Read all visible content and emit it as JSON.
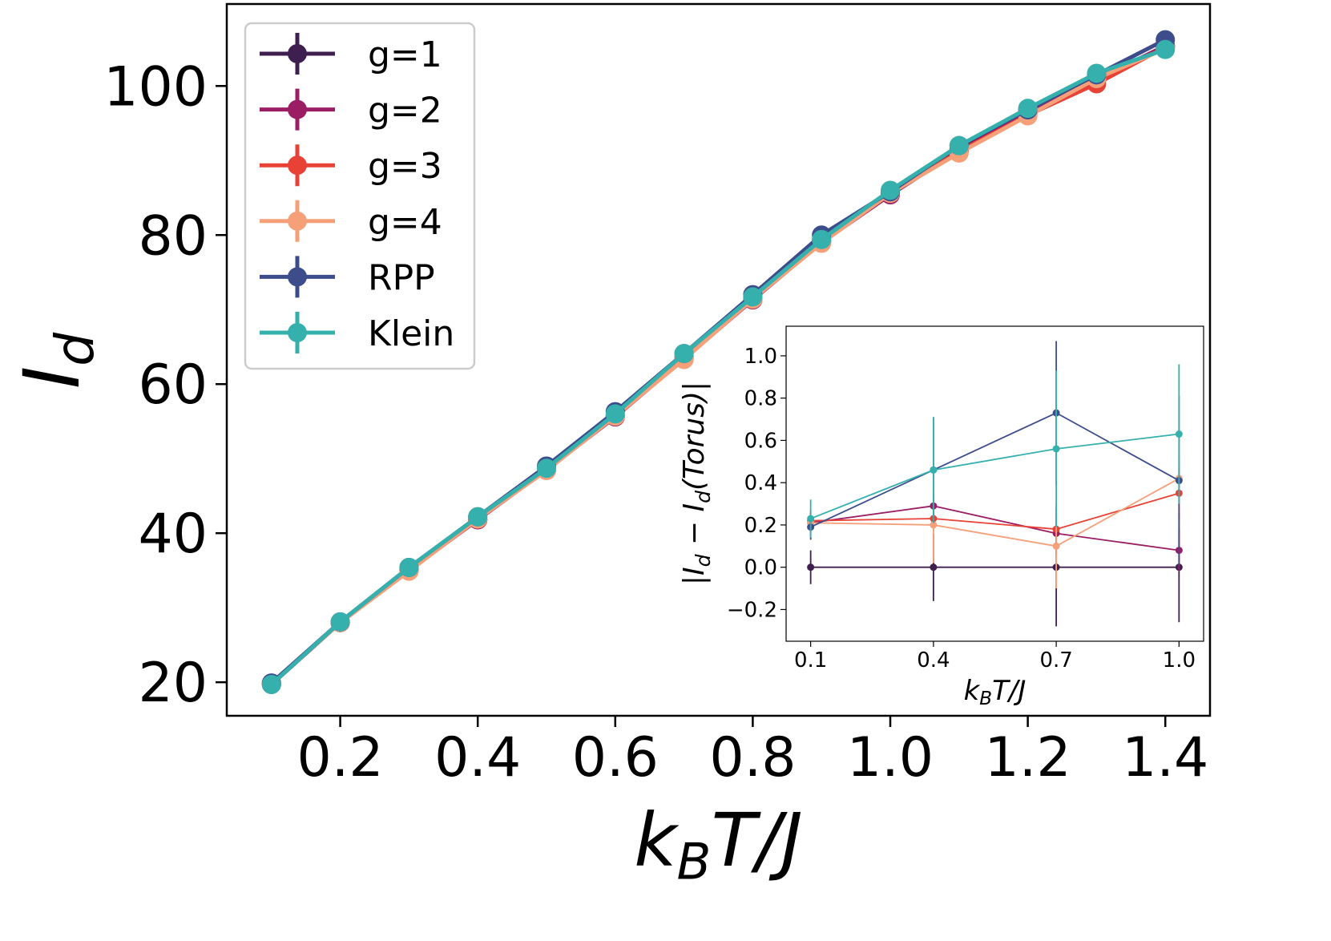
{
  "chart_data": [
    {
      "type": "line",
      "role": "main",
      "title": "",
      "xlabel": {
        "base": "k",
        "sub": "B",
        "rest": "T/J"
      },
      "ylabel": {
        "base": "I",
        "sub": "d"
      },
      "xlim": [
        0.035,
        1.465
      ],
      "ylim": [
        15.5,
        111
      ],
      "xticks": [
        0.2,
        0.4,
        0.6,
        0.8,
        1.0,
        1.2,
        1.4
      ],
      "xtick_labels": [
        "0.2",
        "0.4",
        "0.6",
        "0.8",
        "1.0",
        "1.2",
        "1.4"
      ],
      "yticks": [
        20,
        40,
        60,
        80,
        100
      ],
      "ytick_labels": [
        "20",
        "40",
        "60",
        "80",
        "100"
      ],
      "grid": false,
      "legend": "upper-left",
      "x": [
        0.1,
        0.2,
        0.3,
        0.4,
        0.5,
        0.6,
        0.7,
        0.8,
        0.9,
        1.0,
        1.1,
        1.2,
        1.3,
        1.4
      ],
      "series": [
        {
          "name": "g=1",
          "color": "#3f1f4f",
          "values": [
            19.7,
            28.0,
            35.2,
            41.8,
            48.6,
            55.7,
            63.5,
            71.5,
            79.3,
            85.5,
            91.5,
            96.5,
            101.0,
            105.3
          ]
        },
        {
          "name": "g=2",
          "color": "#9b1d63",
          "values": [
            19.8,
            28.0,
            35.0,
            41.8,
            48.5,
            55.6,
            63.4,
            71.3,
            79.0,
            85.4,
            91.3,
            96.3,
            100.8,
            105.4
          ]
        },
        {
          "name": "g=3",
          "color": "#e84236",
          "values": [
            19.8,
            28.0,
            35.0,
            41.9,
            48.5,
            55.7,
            63.4,
            71.4,
            79.1,
            85.6,
            91.2,
            96.1,
            100.3,
            105.2
          ]
        },
        {
          "name": "g=4",
          "color": "#f6a07a",
          "values": [
            19.8,
            28.0,
            34.9,
            41.9,
            48.4,
            55.7,
            63.3,
            71.4,
            78.9,
            85.6,
            91.0,
            96.0,
            101.0,
            105.0
          ]
        },
        {
          "name": "RPP",
          "color": "#3d4d8c",
          "values": [
            19.9,
            28.1,
            35.4,
            42.2,
            49.0,
            56.3,
            64.1,
            72.0,
            80.0,
            85.8,
            92.0,
            96.8,
            101.5,
            106.2
          ]
        },
        {
          "name": "Klein",
          "color": "#36b0ad",
          "values": [
            19.7,
            28.1,
            35.4,
            42.2,
            48.7,
            56.0,
            64.1,
            71.7,
            79.4,
            86.0,
            92.0,
            97.0,
            101.7,
            104.9
          ]
        }
      ]
    },
    {
      "type": "line",
      "role": "inset",
      "title": "",
      "xlabel": {
        "base": "k",
        "sub": "B",
        "rest": "T/J"
      },
      "ylabel": {
        "text": "|I_d − I_d(Torus)|",
        "open": "|I",
        "sub": "d",
        "mid": " − I",
        "rest": "(Torus)|"
      },
      "xlim": [
        0.04,
        1.06
      ],
      "ylim": [
        -0.35,
        1.14
      ],
      "xticks": [
        0.1,
        0.4,
        0.7,
        1.0
      ],
      "xtick_labels": [
        "0.1",
        "0.4",
        "0.7",
        "1.0"
      ],
      "yticks": [
        -0.2,
        0.0,
        0.2,
        0.4,
        0.6,
        0.8,
        1.0
      ],
      "ytick_labels": [
        "−0.2",
        "0.0",
        "0.2",
        "0.4",
        "0.6",
        "0.8",
        "1.0"
      ],
      "grid": false,
      "x": [
        0.1,
        0.4,
        0.7,
        1.0
      ],
      "series": [
        {
          "name": "g=1",
          "color": "#3f1f4f",
          "values": [
            0.0,
            0.0,
            0.0,
            0.0
          ],
          "err": [
            0.08,
            0.16,
            0.28,
            0.26
          ]
        },
        {
          "name": "g=2",
          "color": "#9b1d63",
          "values": [
            0.21,
            0.29,
            0.16,
            0.08
          ],
          "err": [
            0.04,
            0.06,
            0.1,
            0.1
          ]
        },
        {
          "name": "g=3",
          "color": "#e84236",
          "values": [
            0.22,
            0.23,
            0.18,
            0.35
          ],
          "err": [
            0.05,
            0.06,
            0.1,
            0.12
          ]
        },
        {
          "name": "g=4",
          "color": "#f6a07a",
          "values": [
            0.21,
            0.2,
            0.1,
            0.42
          ],
          "err": [
            0.05,
            0.18,
            0.2,
            0.1
          ]
        },
        {
          "name": "RPP",
          "color": "#3d4d8c",
          "values": [
            0.19,
            0.46,
            0.73,
            0.41
          ],
          "err": [
            0.06,
            0.25,
            0.34,
            0.4
          ]
        },
        {
          "name": "Klein",
          "color": "#36b0ad",
          "values": [
            0.23,
            0.46,
            0.56,
            0.63
          ],
          "err": [
            0.09,
            0.25,
            0.37,
            0.33
          ]
        }
      ]
    }
  ]
}
